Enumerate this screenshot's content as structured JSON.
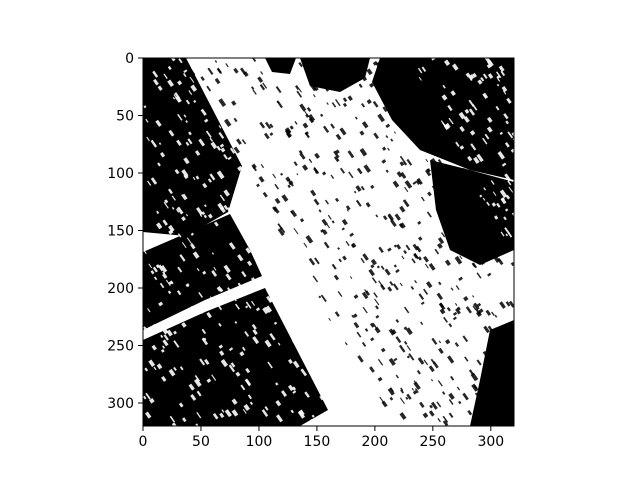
{
  "figure": {
    "image_content": "binary black-and-white aerial image of a diagonal street scene",
    "x_axis": {
      "ticks": [
        0,
        50,
        100,
        150,
        200,
        250,
        300
      ],
      "range": [
        0,
        320
      ]
    },
    "y_axis": {
      "ticks": [
        0,
        50,
        100,
        150,
        200,
        250,
        300
      ],
      "range": [
        0,
        320
      ]
    },
    "colors": {
      "background": "#ffffff",
      "foreground": "#000000"
    }
  }
}
